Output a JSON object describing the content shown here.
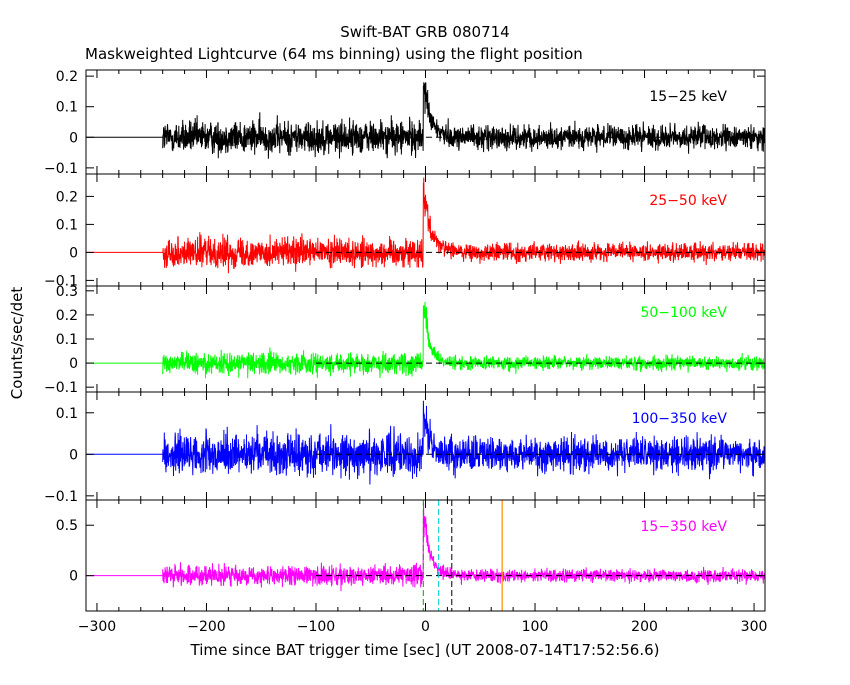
{
  "chart_data": {
    "type": "line",
    "title": "Swift-BAT GRB 080714",
    "subtitle": "Maskweighted Lightcurve (64 ms binning) using the flight position",
    "xlabel": "Time since BAT trigger time [sec] (UT 2008-07-14T17:52:56.6)",
    "ylabel": "Counts/sec/det",
    "xlim": [
      -310,
      310
    ],
    "xticks": [
      -300,
      -200,
      -100,
      0,
      100,
      200,
      300
    ],
    "data_start": -240,
    "dashed_baseline_from": -100,
    "trigger_lines": [
      -2,
      12,
      24
    ],
    "other_lines": [
      70
    ],
    "panels": [
      {
        "name": "15-25 keV",
        "band_label": "15−25 keV",
        "color": "#000000",
        "ylim": [
          -0.12,
          0.22
        ],
        "yticks": [
          -0.1,
          0,
          0.1,
          0.2
        ],
        "ytick_labels": [
          "−0.1",
          "0",
          "0.1",
          "0.2"
        ],
        "noise_before": 0.038,
        "noise_after": 0.027,
        "peak": 0.18,
        "decay": 7,
        "baseline": 0
      },
      {
        "name": "25-50 keV",
        "band_label": "25−50 keV",
        "color": "#ff0000",
        "ylim": [
          -0.12,
          0.28
        ],
        "yticks": [
          -0.1,
          0,
          0.1,
          0.2
        ],
        "ytick_labels": [
          "−0.1",
          "0",
          "0.1",
          "0.2"
        ],
        "noise_before": 0.036,
        "noise_after": 0.022,
        "peak": 0.22,
        "decay": 8,
        "baseline": 0
      },
      {
        "name": "50-100 keV",
        "band_label": "50−100 keV",
        "color": "#00ff00",
        "ylim": [
          -0.12,
          0.32
        ],
        "yticks": [
          -0.1,
          0,
          0.1,
          0.2,
          0.3
        ],
        "ytick_labels": [
          "−0.1",
          "0",
          "0.1",
          "0.2",
          "0.3"
        ],
        "noise_before": 0.032,
        "noise_after": 0.02,
        "peak": 0.25,
        "decay": 6,
        "baseline": 0
      },
      {
        "name": "100-350 keV",
        "band_label": "100−350 keV",
        "color": "#0000ff",
        "ylim": [
          -0.11,
          0.15
        ],
        "yticks": [
          -0.1,
          0,
          0.1
        ],
        "ytick_labels": [
          "−0.1",
          "0",
          "0.1"
        ],
        "noise_before": 0.035,
        "noise_after": 0.028,
        "peak": 0.1,
        "decay": 5,
        "baseline": 0
      },
      {
        "name": "15-350 keV",
        "band_label": "15−350 keV",
        "color": "#ff00ff",
        "ylim": [
          -0.35,
          0.75
        ],
        "yticks": [
          0,
          0.5
        ],
        "ytick_labels": [
          "0",
          "0.5"
        ],
        "noise_before": 0.07,
        "noise_after": 0.045,
        "peak": 0.6,
        "decay": 7,
        "baseline": 0
      }
    ]
  }
}
